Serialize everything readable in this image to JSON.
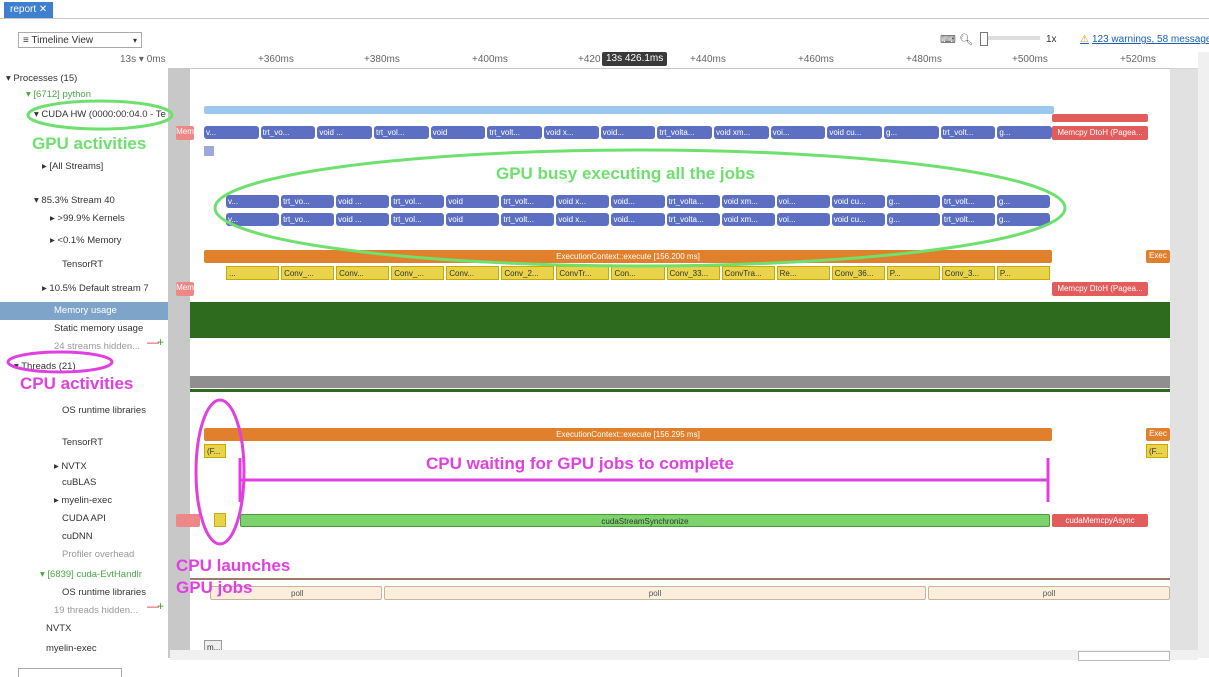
{
  "tab": {
    "label": "report",
    "close": "✕"
  },
  "toolbar": {
    "view_label": "≡ Timeline View",
    "zoom_label": "1x",
    "warnings": "123 warnings, 58 messages"
  },
  "ruler": {
    "origin": "13s ▾ 0ms",
    "ticks": [
      "+360ms",
      "+380ms",
      "+400ms",
      "+420",
      "+440ms",
      "+460ms",
      "+480ms",
      "+500ms",
      "+520ms"
    ],
    "cursor": "13s 426.1ms"
  },
  "rows": [
    "▾ Processes (15)",
    "▾ [6712] python",
    "▾ CUDA HW (0000:00:04.0 - Te",
    "",
    "▸ [All Streams]",
    "",
    "",
    "▾ 85.3% Stream 40",
    "▸ >99.9% Kernels",
    "▸ <0.1% Memory",
    "TensorRT",
    "",
    "▸ 10.5% Default stream 7",
    "Memory usage",
    "Static memory usage",
    "24 streams hidden...",
    "▾ Threads (21)",
    "",
    "OS runtime libraries",
    "",
    "TensorRT",
    "",
    "▸ NVTX",
    "cuBLAS",
    "▸ myelin-exec",
    "CUDA API",
    "cuDNN",
    "Profiler overhead",
    "▾ [6839] cuda-EvtHandlr",
    "OS runtime libraries",
    "19 threads hidden...",
    "NVTX",
    "myelin-exec"
  ],
  "kernel_labels": [
    "v...",
    "trt_vo...",
    "void ...",
    "trt_vol...",
    "void",
    "trt_volt...",
    "void x...",
    "void...",
    "trt_volta...",
    "void xm...",
    "voi...",
    "void cu...",
    "g...",
    "trt_volt...",
    "g..."
  ],
  "conv_labels": [
    "...",
    "Conv_...",
    "Conv...",
    "Conv_...",
    "Conv...",
    "Conv_2...",
    "ConvTr...",
    "Con...",
    "Conv_33...",
    "ConvTra...",
    "Re...",
    "Conv_36...",
    "P...",
    "Conv_3...",
    "P..."
  ],
  "bars": {
    "memcpy_dtoh": "Memcpy DtoH (Pagea...",
    "exec_gpu": "ExecutionContext::execute [156.200 ms]",
    "exec_cpu": "ExecutionContext::execute [156.295 ms]",
    "exec_right": "Exec",
    "stream_sync": "cudaStreamSynchronize",
    "memcpy_async": "cudaMemcpyAsync",
    "poll": "poll",
    "f_label": "(F...",
    "m_label": "m...",
    "mem_short": "Mem"
  },
  "annotations": {
    "gpu_activities": "GPU activities",
    "gpu_busy": "GPU busy executing all the jobs",
    "cpu_activities": "CPU activities",
    "cpu_waiting": "CPU waiting for GPU jobs to complete",
    "cpu_launches_1": "CPU launches",
    "cpu_launches_2": "GPU jobs"
  },
  "colors": {
    "kernel": "#5c6fc2",
    "exec": "#e0802c",
    "memcpy": "#e25c5c",
    "sync": "#7cd36b",
    "memory": "#2e6b1f",
    "annot_green": "#6ee06e",
    "annot_pink": "#e040e0"
  }
}
